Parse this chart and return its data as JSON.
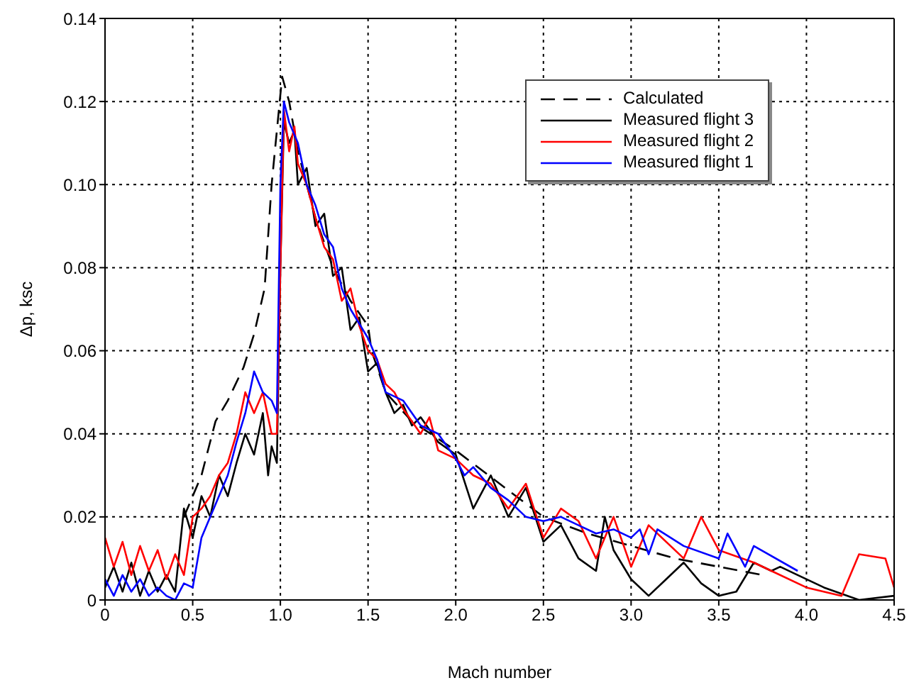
{
  "chart_data": {
    "type": "line",
    "xlabel": "Mach number",
    "ylabel": "Δp, ksc",
    "xlim": [
      0,
      4.5
    ],
    "xticks": [
      0,
      0.5,
      {
        "value": 1,
        "label": "1.0"
      },
      1.5,
      {
        "value": 2,
        "label": "2.0"
      },
      2.5,
      {
        "value": 3,
        "label": "3.0"
      },
      3.5,
      {
        "value": 4,
        "label": "4.0"
      },
      4.5
    ],
    "ylim": [
      0,
      0.14
    ],
    "yticks": [
      0,
      0.02,
      0.04,
      0.06,
      0.08,
      {
        "value": 0.1,
        "label": "0.10"
      },
      0.12,
      0.14
    ],
    "grid": true,
    "legend": "top right",
    "marker": "none",
    "series": [
      {
        "name": "Calculated",
        "color": "#000000",
        "line_style": "dashed",
        "x": [
          0.45,
          0.55,
          0.63,
          0.7,
          0.79,
          0.85,
          0.91,
          0.95,
          1.01,
          1.05,
          1.1,
          1.2,
          1.3,
          1.4,
          1.5,
          1.52,
          1.6,
          1.75,
          2.0,
          2.25,
          2.5,
          2.75,
          3.0,
          3.25,
          3.5,
          3.75
        ],
        "values": [
          0.02,
          0.03,
          0.043,
          0.048,
          0.056,
          0.064,
          0.075,
          0.1,
          0.126,
          0.12,
          0.108,
          0.092,
          0.08,
          0.072,
          0.066,
          0.06,
          0.05,
          0.043,
          0.036,
          0.028,
          0.02,
          0.016,
          0.013,
          0.01,
          0.008,
          0.006
        ]
      },
      {
        "name": "Measured flight 3",
        "color": "#000000",
        "line_style": "solid",
        "x": [
          0,
          0.05,
          0.1,
          0.15,
          0.2,
          0.25,
          0.3,
          0.35,
          0.4,
          0.45,
          0.5,
          0.55,
          0.6,
          0.65,
          0.7,
          0.75,
          0.8,
          0.85,
          0.9,
          0.93,
          0.95,
          0.98,
          1.0,
          1.02,
          1.05,
          1.08,
          1.1,
          1.15,
          1.2,
          1.25,
          1.3,
          1.35,
          1.4,
          1.45,
          1.5,
          1.55,
          1.6,
          1.65,
          1.7,
          1.75,
          1.8,
          1.9,
          2.0,
          2.1,
          2.2,
          2.3,
          2.4,
          2.5,
          2.6,
          2.7,
          2.8,
          2.85,
          2.9,
          3.0,
          3.1,
          3.2,
          3.3,
          3.4,
          3.5,
          3.6,
          3.7,
          3.8,
          3.85,
          3.95,
          4.1,
          4.3,
          4.5
        ],
        "values": [
          0.003,
          0.008,
          0.002,
          0.009,
          0.001,
          0.007,
          0.002,
          0.006,
          0.002,
          0.022,
          0.015,
          0.025,
          0.02,
          0.03,
          0.025,
          0.033,
          0.04,
          0.035,
          0.045,
          0.03,
          0.037,
          0.033,
          0.08,
          0.115,
          0.11,
          0.113,
          0.1,
          0.104,
          0.09,
          0.093,
          0.078,
          0.08,
          0.065,
          0.068,
          0.055,
          0.057,
          0.05,
          0.045,
          0.047,
          0.042,
          0.044,
          0.038,
          0.035,
          0.022,
          0.03,
          0.02,
          0.027,
          0.014,
          0.018,
          0.01,
          0.007,
          0.02,
          0.012,
          0.005,
          0.001,
          0.005,
          0.009,
          0.004,
          0.001,
          0.002,
          0.009,
          0.007,
          0.008,
          0.006,
          0.003,
          0.0,
          0.001
        ]
      },
      {
        "name": "Measured flight 2",
        "color": "#ff0000",
        "line_style": "solid",
        "x": [
          0,
          0.05,
          0.1,
          0.15,
          0.2,
          0.25,
          0.3,
          0.35,
          0.4,
          0.45,
          0.5,
          0.55,
          0.6,
          0.65,
          0.7,
          0.75,
          0.8,
          0.85,
          0.9,
          0.95,
          0.98,
          1.0,
          1.02,
          1.05,
          1.08,
          1.1,
          1.15,
          1.2,
          1.25,
          1.3,
          1.35,
          1.4,
          1.45,
          1.5,
          1.55,
          1.6,
          1.65,
          1.7,
          1.8,
          1.85,
          1.9,
          2.0,
          2.05,
          2.1,
          2.2,
          2.3,
          2.4,
          2.5,
          2.6,
          2.7,
          2.8,
          2.9,
          3.0,
          3.1,
          3.3,
          3.4,
          3.5,
          3.7,
          3.8,
          4.0,
          4.2,
          4.3,
          4.45,
          4.5
        ],
        "values": [
          0.015,
          0.008,
          0.014,
          0.006,
          0.013,
          0.007,
          0.012,
          0.005,
          0.011,
          0.006,
          0.02,
          0.022,
          0.025,
          0.03,
          0.033,
          0.04,
          0.05,
          0.045,
          0.05,
          0.04,
          0.04,
          0.08,
          0.118,
          0.108,
          0.114,
          0.105,
          0.1,
          0.092,
          0.085,
          0.082,
          0.072,
          0.075,
          0.066,
          0.06,
          0.058,
          0.052,
          0.05,
          0.046,
          0.04,
          0.044,
          0.036,
          0.034,
          0.032,
          0.03,
          0.028,
          0.022,
          0.028,
          0.015,
          0.022,
          0.019,
          0.01,
          0.02,
          0.008,
          0.018,
          0.01,
          0.02,
          0.012,
          0.009,
          0.007,
          0.003,
          0.001,
          0.011,
          0.01,
          0.003
        ]
      },
      {
        "name": "Measured flight 1",
        "color": "#0000ff",
        "line_style": "solid",
        "x": [
          0,
          0.05,
          0.1,
          0.15,
          0.2,
          0.25,
          0.3,
          0.35,
          0.4,
          0.45,
          0.5,
          0.55,
          0.6,
          0.65,
          0.7,
          0.75,
          0.8,
          0.85,
          0.9,
          0.95,
          0.98,
          1.0,
          1.02,
          1.05,
          1.1,
          1.15,
          1.2,
          1.25,
          1.3,
          1.35,
          1.4,
          1.5,
          1.55,
          1.6,
          1.7,
          1.8,
          1.9,
          2.0,
          2.05,
          2.1,
          2.2,
          2.3,
          2.4,
          2.5,
          2.6,
          2.7,
          2.8,
          2.9,
          3.0,
          3.05,
          3.1,
          3.15,
          3.3,
          3.5,
          3.55,
          3.65,
          3.7,
          3.95
        ],
        "values": [
          0.005,
          0.001,
          0.006,
          0.002,
          0.005,
          0.001,
          0.003,
          0.001,
          0.0,
          0.004,
          0.003,
          0.015,
          0.02,
          0.025,
          0.03,
          0.038,
          0.045,
          0.055,
          0.05,
          0.048,
          0.045,
          0.1,
          0.12,
          0.115,
          0.11,
          0.1,
          0.095,
          0.088,
          0.085,
          0.075,
          0.07,
          0.063,
          0.058,
          0.05,
          0.048,
          0.042,
          0.04,
          0.034,
          0.03,
          0.032,
          0.027,
          0.024,
          0.02,
          0.019,
          0.02,
          0.018,
          0.016,
          0.017,
          0.015,
          0.017,
          0.011,
          0.017,
          0.013,
          0.01,
          0.016,
          0.008,
          0.013,
          0.007
        ]
      }
    ]
  }
}
